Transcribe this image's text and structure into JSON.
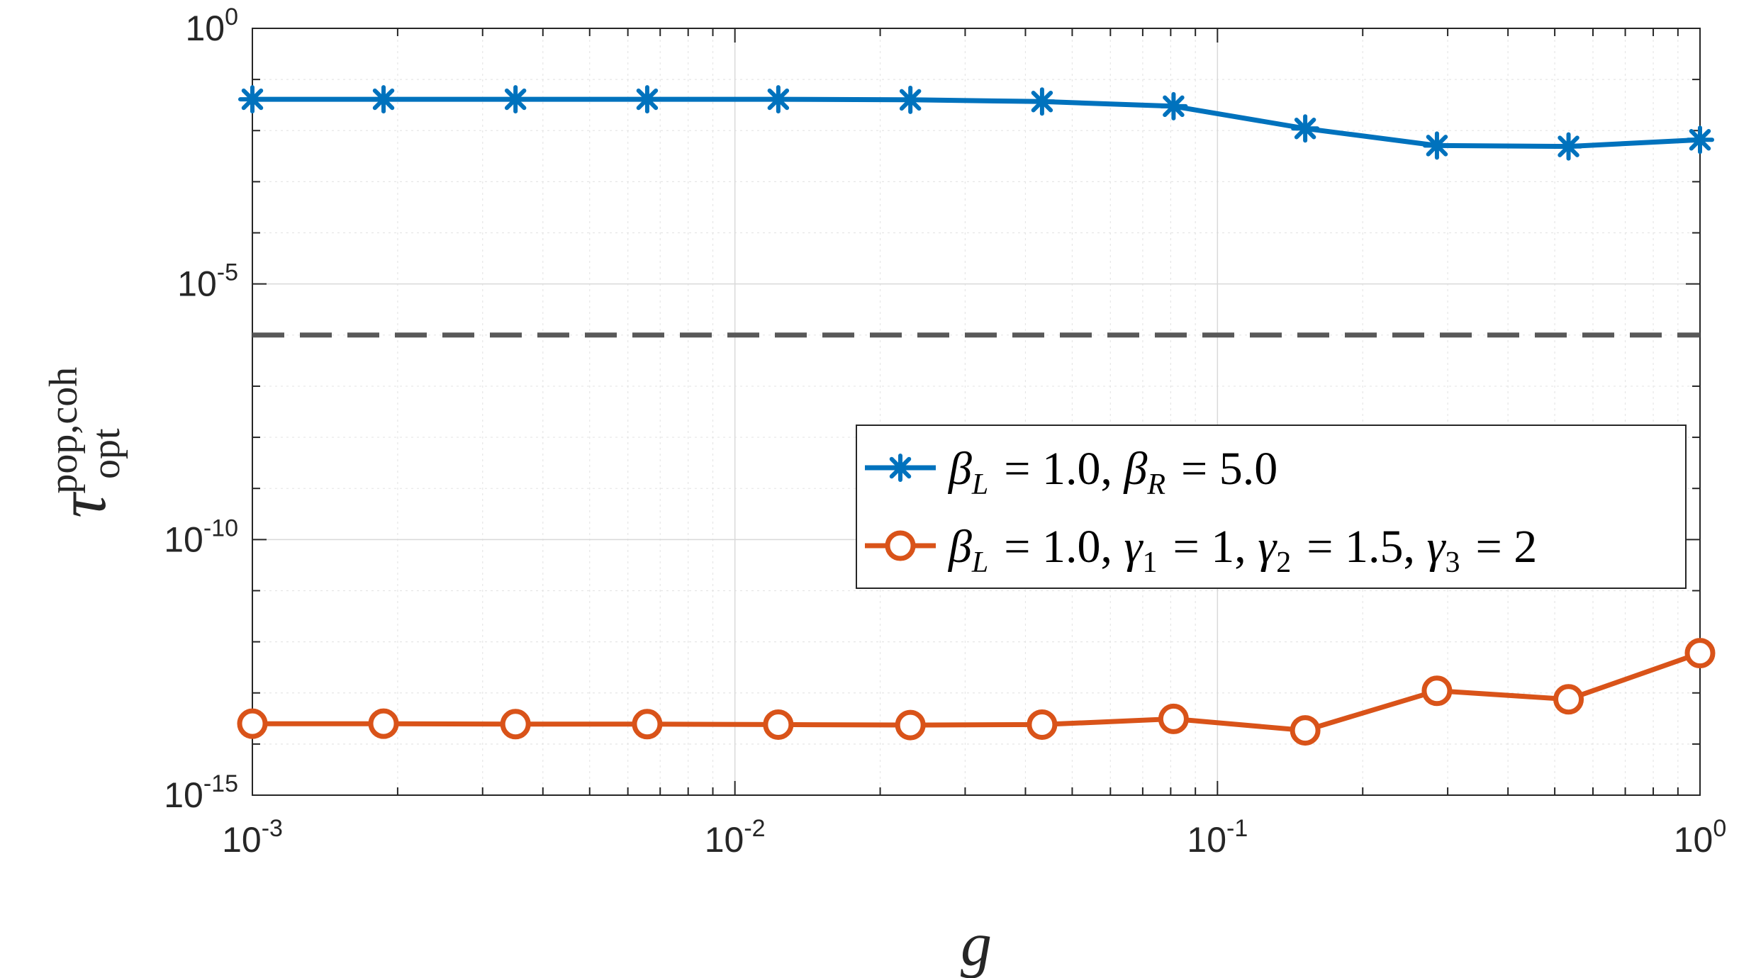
{
  "chart_data": {
    "type": "line",
    "xscale": "log",
    "yscale": "log",
    "xlim": [
      0.001,
      1
    ],
    "ylim": [
      1e-15,
      1
    ],
    "xlabel": "g",
    "ylabel": {
      "base": "τ",
      "sup": "pop,coh",
      "sub": "opt"
    },
    "grid": true,
    "legend_position": "center-right",
    "xticks": [
      {
        "value": 0.001,
        "base": "10",
        "exp": "-3"
      },
      {
        "value": 0.01,
        "base": "10",
        "exp": "-2"
      },
      {
        "value": 0.1,
        "base": "10",
        "exp": "-1"
      },
      {
        "value": 1,
        "base": "10",
        "exp": "0"
      }
    ],
    "yticks": [
      {
        "value": 1,
        "base": "10",
        "exp": "0"
      },
      {
        "value": 1e-05,
        "base": "10",
        "exp": "-5"
      },
      {
        "value": 1e-10,
        "base": "10",
        "exp": "-10"
      },
      {
        "value": 1e-15,
        "base": "10",
        "exp": "-15"
      }
    ],
    "x": [
      0.001,
      0.00187,
      0.00351,
      0.00658,
      0.0123,
      0.0231,
      0.0433,
      0.0811,
      0.152,
      0.285,
      0.534,
      1.0
    ],
    "series": [
      {
        "legend_parts": [
          {
            "t": "β",
            "s": "L"
          },
          {
            "t": " = 1.0, "
          },
          {
            "t": "β",
            "s": "R"
          },
          {
            "t": " = 5.0"
          }
        ],
        "color": "#0072BD",
        "marker": "asterisk",
        "values": [
          0.041,
          0.041,
          0.041,
          0.041,
          0.041,
          0.04,
          0.037,
          0.03,
          0.011,
          0.0051,
          0.0049,
          0.0066
        ]
      },
      {
        "legend_parts": [
          {
            "t": "β",
            "s": "L"
          },
          {
            "t": " = 1.0, "
          },
          {
            "t": "γ",
            "s": "1"
          },
          {
            "t": " = 1, "
          },
          {
            "t": "γ",
            "s": "2"
          },
          {
            "t": " = 1.5, "
          },
          {
            "t": "γ",
            "s": "3"
          },
          {
            "t": " = 2"
          }
        ],
        "color": "#D95319",
        "marker": "circle",
        "values": [
          2.5e-14,
          2.5e-14,
          2.45e-14,
          2.45e-14,
          2.4e-14,
          2.35e-14,
          2.4e-14,
          3.1e-14,
          1.85e-14,
          1.1e-13,
          7.5e-14,
          6e-13
        ]
      }
    ],
    "reference_line": {
      "y": 1e-06,
      "style": "dashed",
      "color": "#595959"
    }
  }
}
